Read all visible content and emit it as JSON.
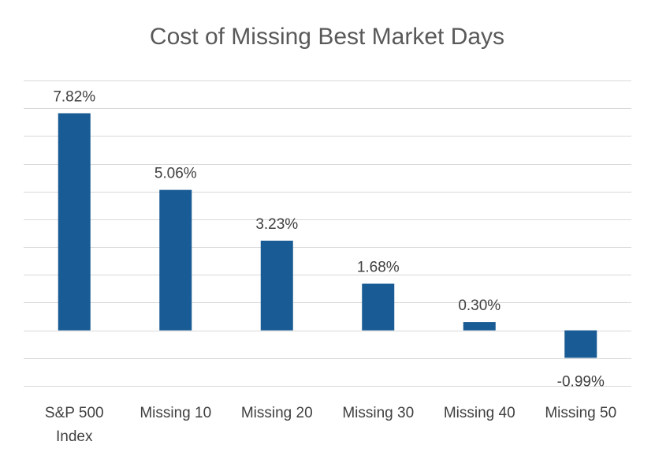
{
  "chart_data": {
    "type": "bar",
    "title": "Cost of Missing Best Market Days",
    "categories": [
      "S&P 500 Index",
      "Missing 10",
      "Missing 20",
      "Missing 30",
      "Missing 40",
      "Missing 50"
    ],
    "category_lines": [
      [
        "S&P 500",
        "Index"
      ],
      [
        "Missing 10"
      ],
      [
        "Missing 20"
      ],
      [
        "Missing 30"
      ],
      [
        "Missing 40"
      ],
      [
        "Missing 50"
      ]
    ],
    "values": [
      7.82,
      5.06,
      3.23,
      1.68,
      0.3,
      -0.99
    ],
    "value_labels": [
      "7.82%",
      "5.06%",
      "3.23%",
      "1.68%",
      "0.30%",
      "-0.99%"
    ],
    "ylim": [
      -2,
      9
    ],
    "ytick_step": 1,
    "grid": true,
    "legend": "none",
    "bar_color": "#195b94"
  }
}
